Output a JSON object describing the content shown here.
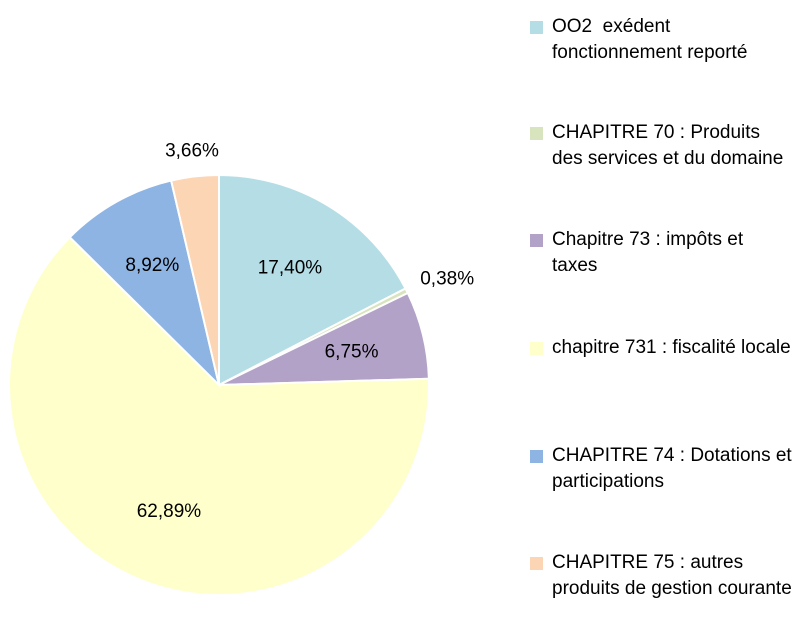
{
  "chart_data": {
    "type": "pie",
    "categories": [
      "OO2  exédent fonctionnement reporté",
      "CHAPITRE 70 : Produits des services et du domaine",
      "Chapitre 73 : impôts et taxes",
      "chapitre 731 : fiscalité locale",
      "CHAPITRE 74 : Dotations et participations",
      "CHAPITRE 75 : autres produits de gestion courante"
    ],
    "values": [
      17.4,
      0.38,
      6.75,
      62.89,
      8.92,
      3.66
    ],
    "value_labels": [
      "17,40%",
      "0,38%",
      "6,75%",
      "62,89%",
      "8,92%",
      "3,66%"
    ],
    "colors": [
      "#b4dde6",
      "#d7e4bd",
      "#b3a2c7",
      "#ffffcc",
      "#8eb4e3",
      "#fcd5b5"
    ],
    "legend": "right"
  }
}
